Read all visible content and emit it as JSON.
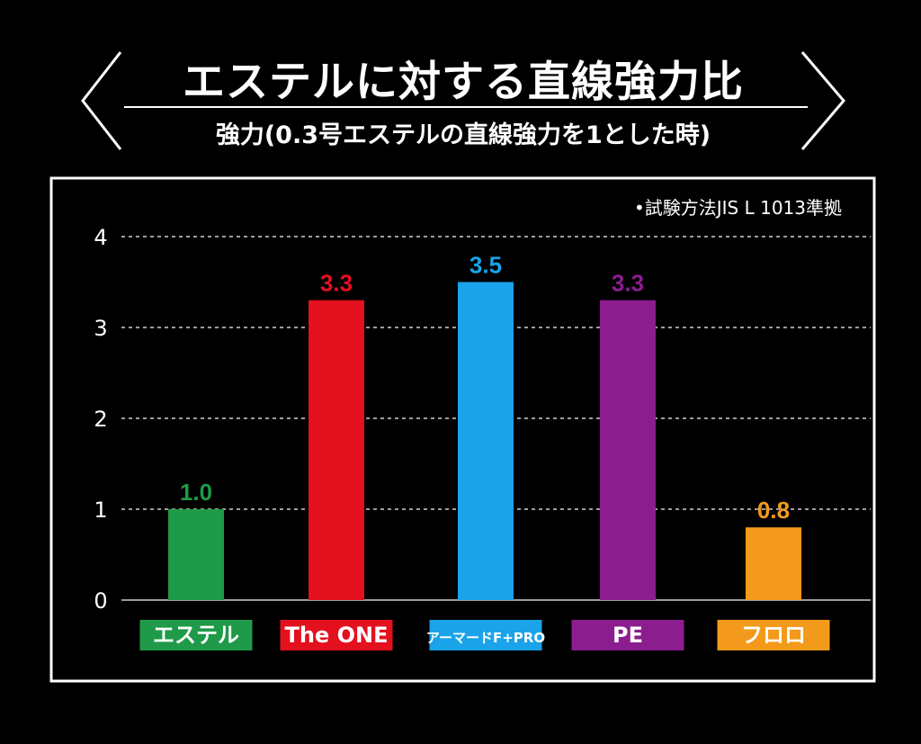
{
  "header": {
    "title": "エステルに対する直線強力比",
    "subtitle": "強力(0.3号エステルの直線強力を1とした時)"
  },
  "chart_data": {
    "type": "bar",
    "note": "•試験方法JIS L 1013準拠",
    "categories": [
      "エステル",
      "The ONE",
      "アーマードF+PRO",
      "PE",
      "フロロ"
    ],
    "values": [
      1.0,
      3.3,
      3.5,
      3.3,
      0.8
    ],
    "value_labels": [
      "1.0",
      "3.3",
      "3.5",
      "3.3",
      "0.8"
    ],
    "colors": [
      "#1f9a48",
      "#e3101e",
      "#1aa3e8",
      "#8b1d8f",
      "#f39a1c"
    ],
    "y_ticks": [
      "0",
      "1",
      "2",
      "3",
      "4"
    ],
    "ylim": [
      0,
      4
    ],
    "grid": true
  }
}
